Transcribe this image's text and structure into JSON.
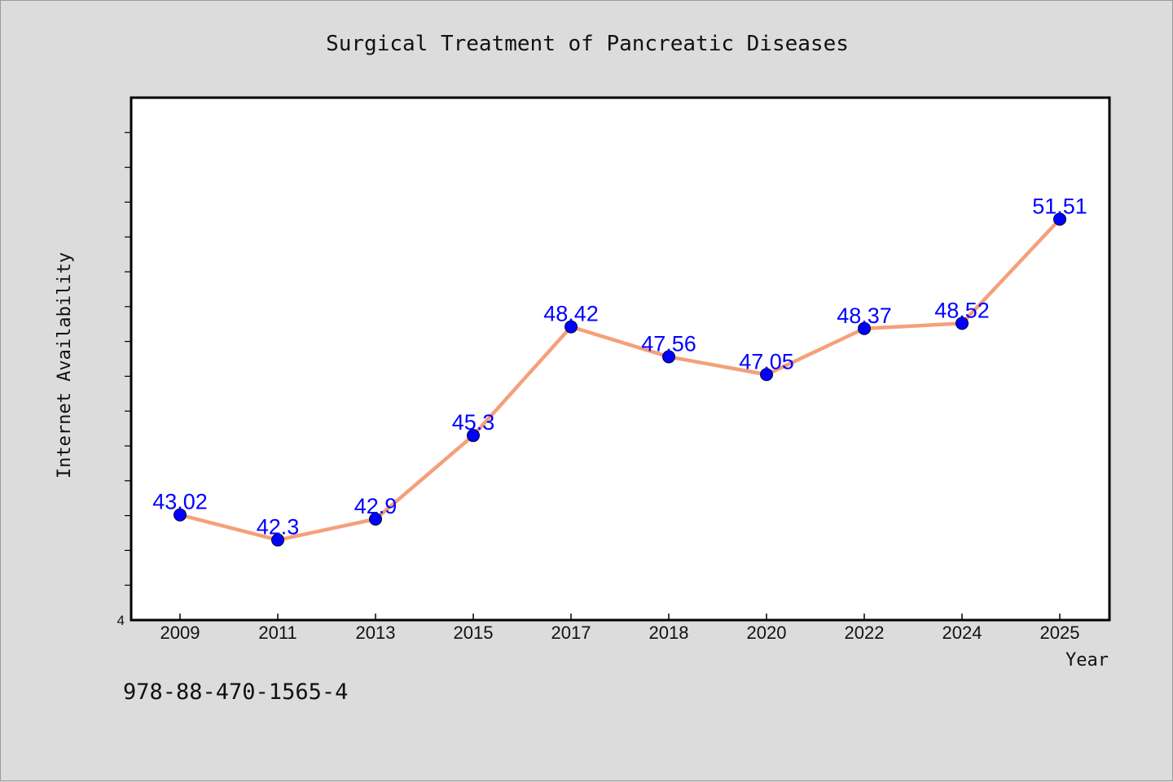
{
  "chart_data": {
    "type": "line",
    "title": "Surgical Treatment of Pancreatic Diseases",
    "xlabel": "Year",
    "ylabel": "Internet Availability",
    "categories": [
      "2009",
      "2011",
      "2013",
      "2015",
      "2017",
      "2018",
      "2020",
      "2022",
      "2024",
      "2025"
    ],
    "series": [
      {
        "values": [
          43.02,
          42.3,
          42.9,
          45.3,
          48.42,
          47.56,
          47.05,
          48.37,
          48.52,
          51.51
        ],
        "labels": [
          "43.02",
          "42.3",
          "42.9",
          "45.3",
          "48.42",
          "47.56",
          "47.05",
          "48.37",
          "48.52",
          "51.51"
        ],
        "color": "#f4a07a",
        "marker_color": "#0000ff"
      }
    ],
    "ylim": [
      40.0,
      55.0
    ],
    "y_tick_label": "4",
    "grid": false,
    "legend": "none"
  },
  "footer": {
    "code": "978-88-470-1565-4"
  }
}
